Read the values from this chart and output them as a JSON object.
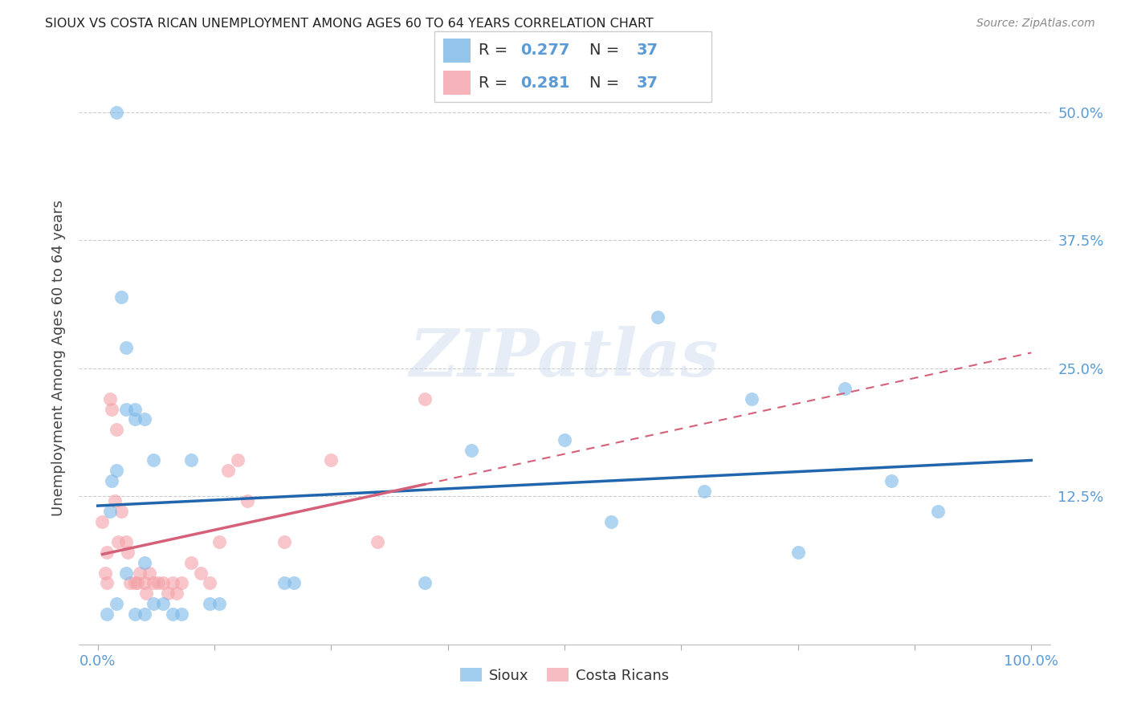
{
  "title": "SIOUX VS COSTA RICAN UNEMPLOYMENT AMONG AGES 60 TO 64 YEARS CORRELATION CHART",
  "source": "Source: ZipAtlas.com",
  "ylabel": "Unemployment Among Ages 60 to 64 years",
  "xlim": [
    -0.02,
    1.02
  ],
  "ylim": [
    -0.02,
    0.54
  ],
  "xticks": [
    0.0,
    0.125,
    0.25,
    0.375,
    0.5,
    0.625,
    0.75,
    0.875,
    1.0
  ],
  "xticklabels": [
    "0.0%",
    "",
    "",
    "",
    "",
    "",
    "",
    "",
    "100.0%"
  ],
  "ytick_positions": [
    0.125,
    0.25,
    0.375,
    0.5
  ],
  "yticklabels": [
    "12.5%",
    "25.0%",
    "37.5%",
    "50.0%"
  ],
  "sioux_color": "#7ab8e8",
  "costa_color": "#f4a0a8",
  "sioux_line_color": "#2166ac",
  "costa_line_color": "#d4607a",
  "sioux_R": "0.277",
  "sioux_N": "37",
  "costa_R": "0.281",
  "costa_N": "37",
  "watermark": "ZIPatlas",
  "legend_labels": [
    "Sioux",
    "Costa Ricans"
  ],
  "sioux_x": [
    0.02,
    0.025,
    0.03,
    0.04,
    0.05,
    0.013,
    0.015,
    0.02,
    0.03,
    0.04,
    0.05,
    0.06,
    0.07,
    0.08,
    0.09,
    0.1,
    0.12,
    0.13,
    0.2,
    0.21,
    0.35,
    0.4,
    0.5,
    0.55,
    0.6,
    0.65,
    0.7,
    0.75,
    0.8,
    0.85,
    0.9,
    0.03,
    0.04,
    0.05,
    0.06,
    0.01,
    0.02
  ],
  "sioux_y": [
    0.5,
    0.32,
    0.27,
    0.21,
    0.2,
    0.11,
    0.14,
    0.15,
    0.21,
    0.2,
    0.06,
    0.16,
    0.02,
    0.01,
    0.01,
    0.16,
    0.02,
    0.02,
    0.04,
    0.04,
    0.04,
    0.17,
    0.18,
    0.1,
    0.3,
    0.13,
    0.22,
    0.07,
    0.23,
    0.14,
    0.11,
    0.05,
    0.01,
    0.01,
    0.02,
    0.01,
    0.02
  ],
  "costa_x": [
    0.005,
    0.008,
    0.01,
    0.01,
    0.013,
    0.015,
    0.018,
    0.02,
    0.022,
    0.025,
    0.03,
    0.032,
    0.035,
    0.04,
    0.042,
    0.045,
    0.05,
    0.052,
    0.055,
    0.06,
    0.065,
    0.07,
    0.075,
    0.08,
    0.085,
    0.09,
    0.1,
    0.11,
    0.12,
    0.13,
    0.14,
    0.15,
    0.16,
    0.2,
    0.25,
    0.3,
    0.35
  ],
  "costa_y": [
    0.1,
    0.05,
    0.07,
    0.04,
    0.22,
    0.21,
    0.12,
    0.19,
    0.08,
    0.11,
    0.08,
    0.07,
    0.04,
    0.04,
    0.04,
    0.05,
    0.04,
    0.03,
    0.05,
    0.04,
    0.04,
    0.04,
    0.03,
    0.04,
    0.03,
    0.04,
    0.06,
    0.05,
    0.04,
    0.08,
    0.15,
    0.16,
    0.12,
    0.08,
    0.16,
    0.08,
    0.22
  ]
}
